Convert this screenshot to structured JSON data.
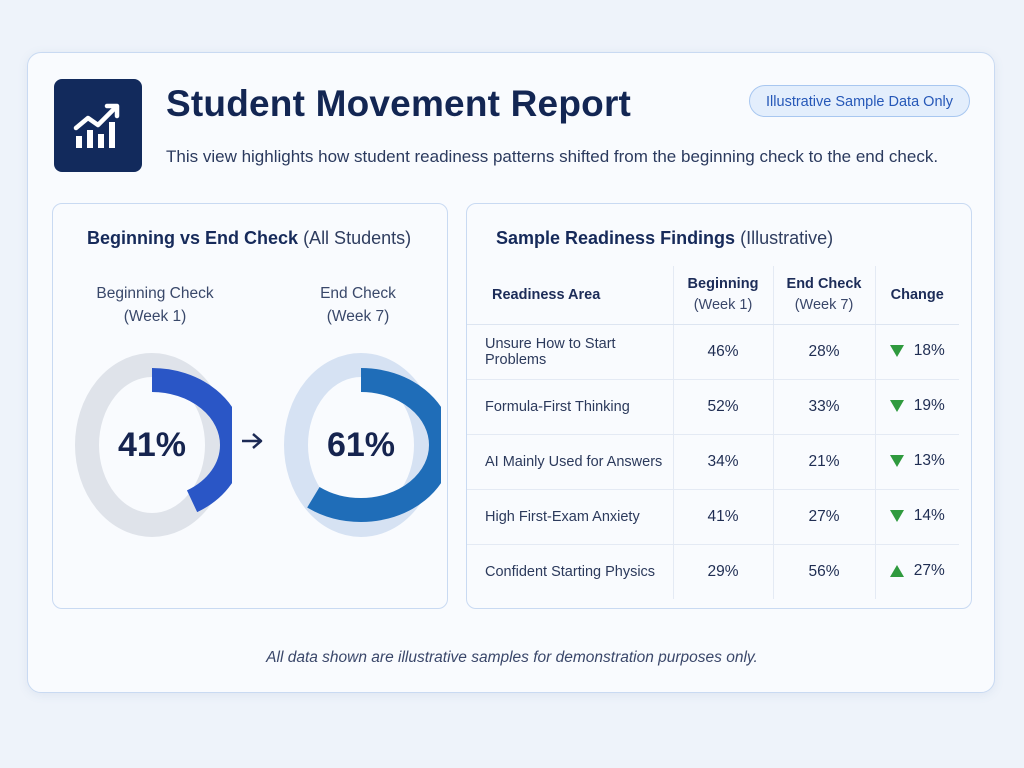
{
  "header": {
    "title": "Student Movement Report",
    "subtitle": "This view highlights how student readiness patterns shifted from the beginning check to the end check.",
    "badge": "Illustrative Sample Data Only",
    "logo_icon": "trending-chart-icon"
  },
  "donut_panel": {
    "title": "Beginning vs End Check",
    "title_note": "(All Students)",
    "arrow_icon": "arrow-right-icon",
    "beginning": {
      "label": "Beginning Check",
      "sublabel": "(Week 1)",
      "value_text": "41%",
      "value": 41,
      "color": "#2a56c6",
      "track_color": "#dfe3ea"
    },
    "end": {
      "label": "End Check",
      "sublabel": "(Week 7)",
      "value_text": "61%",
      "value": 61,
      "color": "#1f6db8",
      "track_color": "#d6e2f3"
    }
  },
  "table_panel": {
    "title": "Sample Readiness Findings",
    "title_note": "(Illustrative)",
    "columns": {
      "area": "Readiness Area",
      "beginning": "Beginning",
      "beginning_sub": "(Week 1)",
      "end": "End Check",
      "end_sub": "(Week 7)",
      "change": "Change"
    },
    "rows": [
      {
        "area": "Unsure How to Start Problems",
        "beginning": "46%",
        "end": "28%",
        "direction": "down",
        "change": "18%"
      },
      {
        "area": "Formula-First Thinking",
        "beginning": "52%",
        "end": "33%",
        "direction": "down",
        "change": "19%"
      },
      {
        "area": "AI Mainly Used for Answers",
        "beginning": "34%",
        "end": "21%",
        "direction": "down",
        "change": "13%"
      },
      {
        "area": "High First-Exam Anxiety",
        "beginning": "41%",
        "end": "27%",
        "direction": "down",
        "change": "14%"
      },
      {
        "area": "Confident Starting Physics",
        "beginning": "29%",
        "end": "56%",
        "direction": "up",
        "change": "27%"
      }
    ],
    "change_color": "#2f9a3e"
  },
  "footer": {
    "note": "All data shown are illustrative samples for demonstration purposes only."
  }
}
